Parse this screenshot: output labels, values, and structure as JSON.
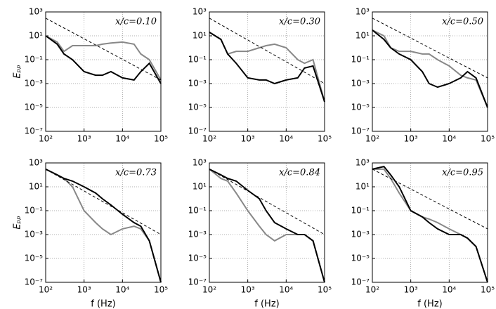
{
  "chart_data": [
    {
      "type": "line",
      "annotation": "x/c=0.10",
      "ylabel": "Eₚₚ",
      "x": [
        100,
        200,
        300,
        500,
        1000,
        2000,
        3000,
        5000,
        10000,
        20000,
        30000,
        50000,
        100000
      ],
      "series": [
        {
          "color": "#888888",
          "values": [
            10,
            3,
            0.5,
            1.5,
            1.5,
            1.5,
            2,
            2.5,
            3,
            2,
            0.3,
            0.1,
            0.002
          ]
        },
        {
          "color": "#000000",
          "values": [
            10,
            2,
            0.3,
            0.1,
            0.01,
            0.005,
            0.005,
            0.01,
            0.003,
            0.002,
            0.01,
            0.05,
            0.001
          ]
        },
        {
          "color": "#000000",
          "dashed": true,
          "x": [
            100,
            100000
          ],
          "values": [
            300,
            0.002
          ]
        }
      ],
      "xlim": [
        100,
        100000
      ],
      "ylim": [
        1e-07,
        1000
      ],
      "log": true,
      "grid": true,
      "xticks": [
        {
          "value": 100,
          "label": "10²"
        },
        {
          "value": 1000,
          "label": "10³"
        },
        {
          "value": 10000,
          "label": "10⁴"
        },
        {
          "value": 100000,
          "label": "10⁵"
        }
      ],
      "yticks": [
        {
          "value": 1e-07,
          "label": "10⁻⁷"
        },
        {
          "value": 1e-05,
          "label": "10⁻⁵"
        },
        {
          "value": 0.001,
          "label": "10⁻³"
        },
        {
          "value": 0.1,
          "label": "10⁻¹"
        },
        {
          "value": 10,
          "label": "10¹"
        },
        {
          "value": 1000,
          "label": "10³"
        }
      ]
    },
    {
      "type": "line",
      "annotation": "x/c=0.30",
      "x": [
        100,
        200,
        300,
        500,
        1000,
        2000,
        3000,
        5000,
        10000,
        20000,
        30000,
        50000,
        100000
      ],
      "series": [
        {
          "color": "#888888",
          "values": [
            20,
            5,
            0.3,
            0.5,
            0.5,
            1,
            1.5,
            2,
            1,
            0.1,
            0.05,
            0.1,
            3e-05
          ]
        },
        {
          "color": "#000000",
          "values": [
            20,
            5,
            0.3,
            0.05,
            0.003,
            0.002,
            0.002,
            0.001,
            0.002,
            0.003,
            0.02,
            0.03,
            3e-05
          ]
        },
        {
          "color": "#000000",
          "dashed": true,
          "x": [
            100,
            100000
          ],
          "values": [
            300,
            0.001
          ]
        }
      ],
      "xlim": [
        100,
        100000
      ],
      "ylim": [
        1e-07,
        1000
      ],
      "log": true,
      "grid": true,
      "xticks": [
        {
          "value": 100,
          "label": "10²"
        },
        {
          "value": 1000,
          "label": "10³"
        },
        {
          "value": 10000,
          "label": "10⁴"
        },
        {
          "value": 100000,
          "label": "10⁵"
        }
      ],
      "yticks": [
        {
          "value": 1e-07,
          "label": "10⁻⁷"
        },
        {
          "value": 1e-05,
          "label": "10⁻⁵"
        },
        {
          "value": 0.001,
          "label": "10⁻³"
        },
        {
          "value": 0.1,
          "label": "10⁻¹"
        },
        {
          "value": 10,
          "label": "10¹"
        },
        {
          "value": 1000,
          "label": "10³"
        }
      ]
    },
    {
      "type": "line",
      "annotation": "x/c=0.50",
      "x": [
        100,
        200,
        300,
        500,
        1000,
        2000,
        3000,
        5000,
        10000,
        20000,
        30000,
        50000,
        100000
      ],
      "series": [
        {
          "color": "#888888",
          "values": [
            30,
            10,
            1,
            0.5,
            0.5,
            0.3,
            0.3,
            0.1,
            0.03,
            0.005,
            0.003,
            0.002,
            1e-05
          ]
        },
        {
          "color": "#000000",
          "values": [
            30,
            5,
            1,
            0.3,
            0.1,
            0.01,
            0.001,
            0.0005,
            0.001,
            0.003,
            0.01,
            0.003,
            1e-05
          ]
        },
        {
          "color": "#000000",
          "dashed": true,
          "x": [
            100,
            100000
          ],
          "values": [
            300,
            0.003
          ]
        }
      ],
      "xlim": [
        100,
        100000
      ],
      "ylim": [
        1e-07,
        1000
      ],
      "log": true,
      "grid": true,
      "xticks": [
        {
          "value": 100,
          "label": "10²"
        },
        {
          "value": 1000,
          "label": "10³"
        },
        {
          "value": 10000,
          "label": "10⁴"
        },
        {
          "value": 100000,
          "label": "10⁵"
        }
      ],
      "yticks": [
        {
          "value": 1e-07,
          "label": "10⁻⁷"
        },
        {
          "value": 1e-05,
          "label": "10⁻⁵"
        },
        {
          "value": 0.001,
          "label": "10⁻³"
        },
        {
          "value": 0.1,
          "label": "10⁻¹"
        },
        {
          "value": 10,
          "label": "10¹"
        },
        {
          "value": 1000,
          "label": "10³"
        }
      ]
    },
    {
      "type": "line",
      "annotation": "x/c=0.73",
      "ylabel": "Eₚₚ",
      "xlabel": "f (Hz)",
      "x": [
        100,
        200,
        300,
        500,
        1000,
        2000,
        3000,
        5000,
        10000,
        20000,
        30000,
        50000,
        100000
      ],
      "series": [
        {
          "color": "#888888",
          "values": [
            300,
            100,
            50,
            10,
            0.1,
            0.01,
            0.003,
            0.001,
            0.003,
            0.005,
            0.003,
            0.0003,
            1e-07
          ]
        },
        {
          "color": "#000000",
          "values": [
            300,
            100,
            50,
            30,
            10,
            3,
            1,
            0.3,
            0.05,
            0.01,
            0.005,
            0.0003,
            1e-07
          ]
        },
        {
          "color": "#000000",
          "dashed": true,
          "x": [
            100,
            100000
          ],
          "values": [
            300,
            0.001
          ]
        }
      ],
      "xlim": [
        100,
        100000
      ],
      "ylim": [
        1e-07,
        1000
      ],
      "log": true,
      "grid": true,
      "xticks": [
        {
          "value": 100,
          "label": "10²"
        },
        {
          "value": 1000,
          "label": "10³"
        },
        {
          "value": 10000,
          "label": "10⁴"
        },
        {
          "value": 100000,
          "label": "10⁵"
        }
      ],
      "yticks": [
        {
          "value": 1e-07,
          "label": "10⁻⁷"
        },
        {
          "value": 1e-05,
          "label": "10⁻⁵"
        },
        {
          "value": 0.001,
          "label": "10⁻³"
        },
        {
          "value": 0.1,
          "label": "10⁻¹"
        },
        {
          "value": 10,
          "label": "10¹"
        },
        {
          "value": 1000,
          "label": "10³"
        }
      ]
    },
    {
      "type": "line",
      "annotation": "x/c=0.84",
      "xlabel": "f (Hz)",
      "x": [
        100,
        200,
        300,
        500,
        1000,
        2000,
        3000,
        5000,
        10000,
        20000,
        30000,
        50000,
        100000
      ],
      "series": [
        {
          "color": "#888888",
          "values": [
            300,
            50,
            30,
            3,
            0.1,
            0.005,
            0.001,
            0.0003,
            0.001,
            0.001,
            0.001,
            0.0003,
            1e-07
          ]
        },
        {
          "color": "#000000",
          "values": [
            300,
            100,
            50,
            30,
            5,
            1,
            0.1,
            0.01,
            0.003,
            0.001,
            0.001,
            0.0003,
            1e-07
          ]
        },
        {
          "color": "#000000",
          "dashed": true,
          "x": [
            100,
            100000
          ],
          "values": [
            300,
            0.001
          ]
        }
      ],
      "xlim": [
        100,
        100000
      ],
      "ylim": [
        1e-07,
        1000
      ],
      "log": true,
      "grid": true,
      "xticks": [
        {
          "value": 100,
          "label": "10²"
        },
        {
          "value": 1000,
          "label": "10³"
        },
        {
          "value": 10000,
          "label": "10⁴"
        },
        {
          "value": 100000,
          "label": "10⁵"
        }
      ],
      "yticks": [
        {
          "value": 1e-07,
          "label": "10⁻⁷"
        },
        {
          "value": 1e-05,
          "label": "10⁻⁵"
        },
        {
          "value": 0.001,
          "label": "10⁻³"
        },
        {
          "value": 0.1,
          "label": "10⁻¹"
        },
        {
          "value": 10,
          "label": "10¹"
        },
        {
          "value": 1000,
          "label": "10³"
        }
      ]
    },
    {
      "type": "line",
      "annotation": "x/c=0.95",
      "xlabel": "f (Hz)",
      "x": [
        100,
        200,
        300,
        500,
        1000,
        2000,
        3000,
        5000,
        10000,
        20000,
        30000,
        50000,
        100000
      ],
      "series": [
        {
          "color": "#888888",
          "values": [
            300,
            300,
            50,
            3,
            0.1,
            0.03,
            0.02,
            0.01,
            0.003,
            0.001,
            0.0005,
            0.0001,
            1e-07
          ]
        },
        {
          "color": "#000000",
          "values": [
            300,
            500,
            100,
            10,
            0.1,
            0.03,
            0.01,
            0.003,
            0.001,
            0.001,
            0.0005,
            0.0001,
            1e-07
          ]
        },
        {
          "color": "#000000",
          "dashed": true,
          "x": [
            100,
            100000
          ],
          "values": [
            300,
            0.003
          ]
        }
      ],
      "xlim": [
        100,
        100000
      ],
      "ylim": [
        1e-07,
        1000
      ],
      "log": true,
      "grid": true,
      "xticks": [
        {
          "value": 100,
          "label": "10²"
        },
        {
          "value": 1000,
          "label": "10³"
        },
        {
          "value": 10000,
          "label": "10⁴"
        },
        {
          "value": 100000,
          "label": "10⁵"
        }
      ],
      "yticks": [
        {
          "value": 1e-07,
          "label": "10⁻⁷"
        },
        {
          "value": 1e-05,
          "label": "10⁻⁵"
        },
        {
          "value": 0.001,
          "label": "10⁻³"
        },
        {
          "value": 0.1,
          "label": "10⁻¹"
        },
        {
          "value": 10,
          "label": "10¹"
        },
        {
          "value": 1000,
          "label": "10³"
        }
      ]
    }
  ]
}
